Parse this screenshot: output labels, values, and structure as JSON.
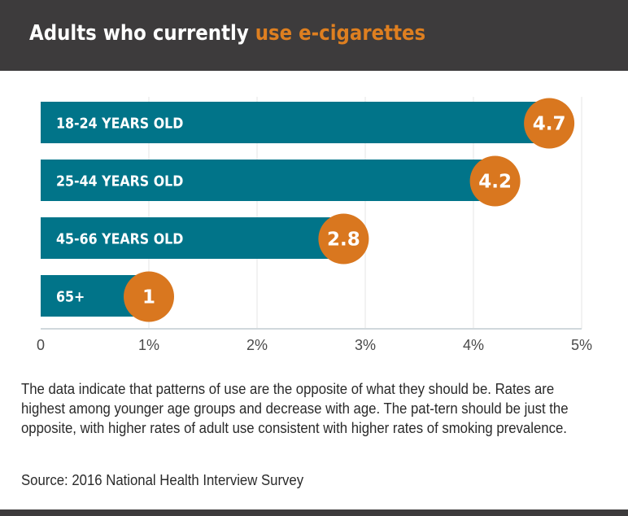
{
  "header": {
    "title_plain": "Adults who currently ",
    "title_highlight": "use e-cigarettes"
  },
  "colors": {
    "header_bg": "#3d3b3c",
    "highlight": "#de7f20",
    "bar": "#017489",
    "circle": "#d9771f",
    "grid": "#e6e6e6",
    "axis": "#d0d8dc"
  },
  "chart_data": {
    "type": "bar",
    "orientation": "horizontal",
    "title": "Adults who currently use e-cigarettes",
    "categories": [
      "18-24 YEARS OLD",
      "25-44 YEARS OLD",
      "45-66 YEARS OLD",
      "65+"
    ],
    "values": [
      4.7,
      4.2,
      2.8,
      1
    ],
    "value_labels": [
      "4.7",
      "4.2",
      "2.8",
      "1"
    ],
    "xlabel": "",
    "ylabel": "",
    "xlim": [
      0,
      5
    ],
    "x_ticks": [
      0,
      1,
      2,
      3,
      4,
      5
    ],
    "x_tick_labels": [
      "0",
      "1%",
      "2%",
      "3%",
      "4%",
      "5%"
    ],
    "grid": true,
    "legend": "none"
  },
  "description": "The data indicate that patterns of use are the opposite of what they should be. Rates are highest among younger age groups and decrease with age. The pat-tern should be just the opposite, with higher rates of adult use consistent with higher rates of smoking prevalence.",
  "source": "Source: 2016 National Health Interview Survey"
}
